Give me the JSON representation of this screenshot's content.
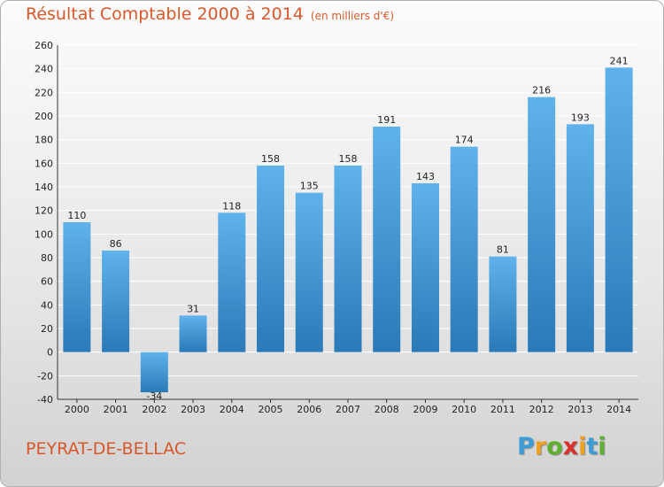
{
  "chart_data": {
    "type": "bar",
    "title": "Résultat Comptable 2000 à 2014",
    "subtitle": "(en milliers d'€)",
    "categories": [
      "2000",
      "2001",
      "2002",
      "2003",
      "2004",
      "2005",
      "2006",
      "2007",
      "2008",
      "2009",
      "2010",
      "2011",
      "2012",
      "2013",
      "2014"
    ],
    "values": [
      110,
      86,
      -34,
      31,
      118,
      158,
      135,
      158,
      191,
      143,
      174,
      81,
      216,
      193,
      241
    ],
    "yticks": [
      "260",
      "240",
      "220",
      "200",
      "180",
      "160",
      "140",
      "120",
      "100",
      "80",
      "60",
      "40",
      "20",
      "0",
      "-20",
      "-40"
    ],
    "ylim": [
      -40,
      260
    ],
    "grid": true,
    "xlabel": "",
    "ylabel": "",
    "colors": {
      "bar_light": "#5fb2ea",
      "bar_dark": "#2a79b8",
      "grid": "#ffffff",
      "axis": "#333333"
    }
  },
  "footer": {
    "place": "PEYRAT-DE-BELLAC",
    "logo": {
      "letters": [
        "P",
        "r",
        "o",
        "x",
        "i",
        "t",
        "i"
      ],
      "colors": [
        "#3d9bd6",
        "#f0a020",
        "#60b030",
        "#d8302c",
        "#f0a020",
        "#3d9bd6",
        "#60b030"
      ]
    }
  }
}
